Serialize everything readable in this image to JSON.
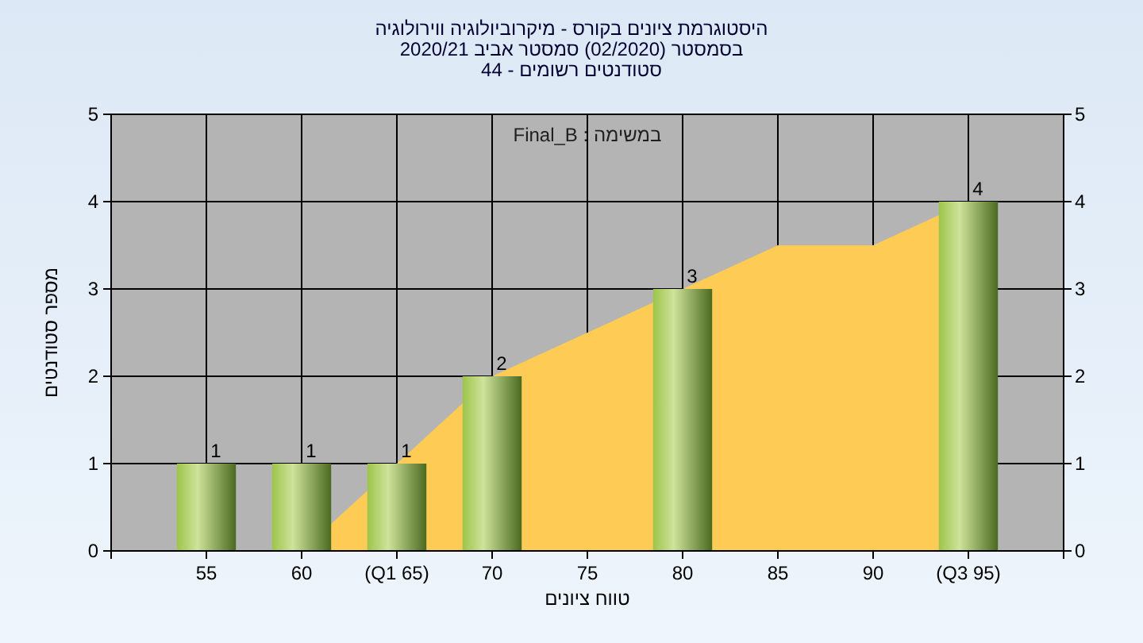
{
  "chart_data": {
    "type": "bar",
    "title": "היסטוגרמת ציונים בקורס - מיקרוביולוגיה ווירולוגיה\nבסמסטר  (02/2020)  סמסטר אביב 2020/21\nסטודנטים רשומים - 44",
    "xlabel": "טווח ציונים",
    "ylabel": "מספר סטודנטים",
    "annotations": [
      "במשימה : Final_B"
    ],
    "categories": [
      "55",
      "60",
      "(Q1 65)",
      "70",
      "75",
      "80",
      "85",
      "90",
      "(Q3 95)"
    ],
    "series": [
      {
        "type": "area",
        "color": "#fecb55",
        "values": [
          0,
          0,
          1,
          2,
          2.5,
          3,
          3.5,
          3.5,
          4
        ]
      },
      {
        "color": "#9cc44a",
        "values": [
          1,
          1,
          1,
          2,
          0,
          3,
          0,
          0,
          4
        ],
        "value_labels": [
          "1",
          "1",
          "1",
          "2",
          null,
          "3",
          null,
          null,
          "4"
        ]
      }
    ],
    "ylim": [
      0,
      5
    ],
    "yticks": [
      0,
      1,
      2,
      3,
      4,
      5
    ],
    "y2lim": [
      0,
      5
    ],
    "y2ticks": [
      0,
      1,
      2,
      3,
      4,
      5
    ],
    "grid": true
  }
}
